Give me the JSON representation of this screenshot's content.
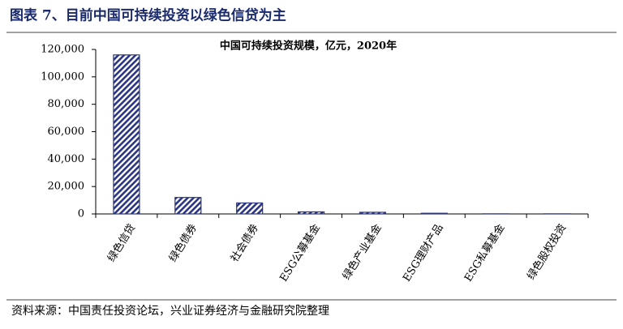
{
  "header": {
    "title": "图表 7、目前中国可持续投资以绿色信贷为主"
  },
  "chart_data": {
    "type": "bar",
    "title": "中国可持续投资规模，亿元，2020年",
    "categories": [
      "绿色信贷",
      "绿色债券",
      "社会债券",
      "ESG公募基金",
      "绿色产业基金",
      "ESG理财产品",
      "ESG私募基金",
      "绿色股权投资"
    ],
    "values": [
      116000,
      12000,
      8000,
      1500,
      1200,
      500,
      100,
      100
    ],
    "color": "#2b3580",
    "ylim": [
      0,
      120000
    ],
    "yticks": [
      0,
      {
        "value": 20000,
        "label": "20,000"
      },
      {
        "value": 40000,
        "label": "40,000"
      },
      {
        "value": 60000,
        "label": "60,000"
      },
      {
        "value": 80000,
        "label": "80,000"
      },
      {
        "value": 100000,
        "label": "100,000"
      },
      {
        "value": 120000,
        "label": "120,000"
      }
    ]
  },
  "source": "资料来源：中国责任投资论坛，兴业证券经济与金融研究院整理"
}
